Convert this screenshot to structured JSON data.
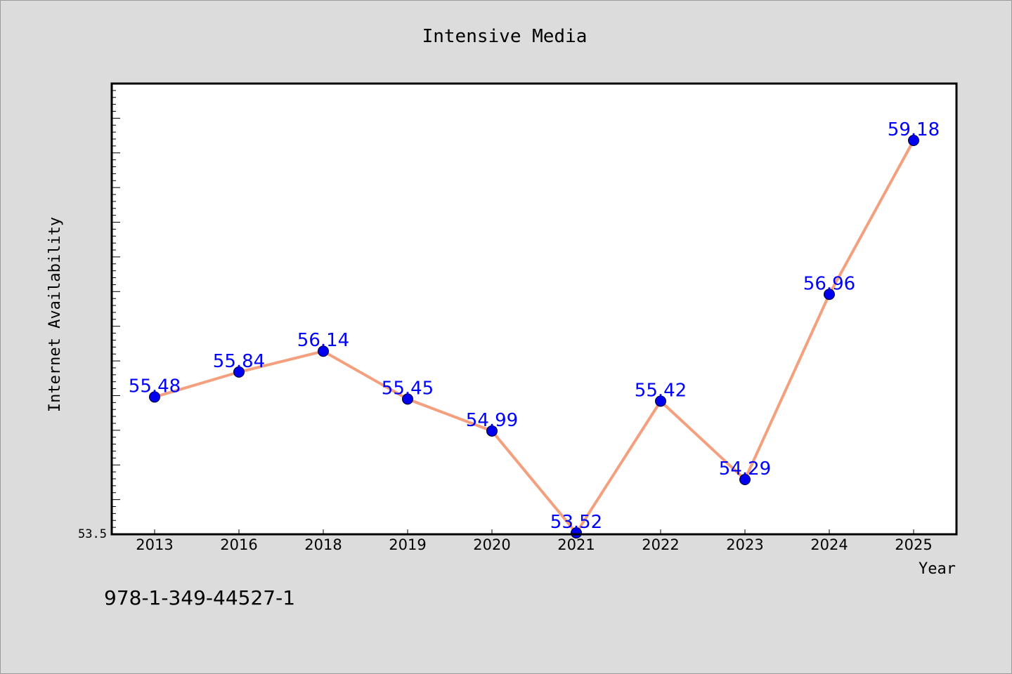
{
  "chart_data": {
    "type": "line",
    "title": "Intensive Media",
    "xlabel": "Year",
    "ylabel": "Internet Availability",
    "categories": [
      "2013",
      "2016",
      "2018",
      "2019",
      "2020",
      "2021",
      "2022",
      "2023",
      "2024",
      "2025"
    ],
    "values": [
      55.48,
      55.84,
      56.14,
      55.45,
      54.99,
      53.52,
      55.42,
      54.29,
      56.96,
      59.18
    ],
    "data_labels": [
      "55.48",
      "55.84",
      "56.14",
      "55.45",
      "54.99",
      "53.52",
      "55.42",
      "54.29",
      "56.96",
      "59.18"
    ],
    "ylim": [
      53.5,
      60.0
    ],
    "ytick_labels": [
      "53.5"
    ],
    "grid": false,
    "line_color": "#f4a07e",
    "marker_color": "#0000ee",
    "label_color": "#0000ff"
  },
  "footer": {
    "code": "978-1-349-44527-1"
  }
}
